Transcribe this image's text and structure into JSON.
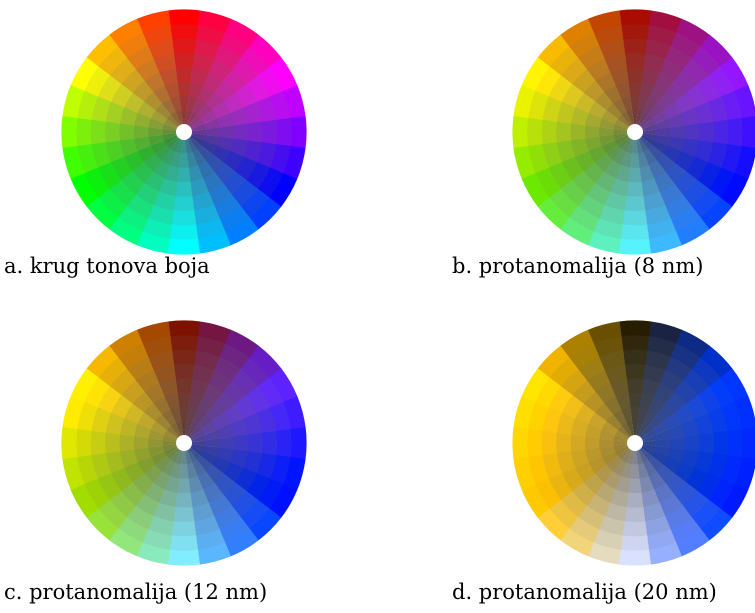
{
  "figure": {
    "panels": [
      {
        "id": "a",
        "caption": "a. krug tonova boja",
        "simulation": "none"
      },
      {
        "id": "b",
        "caption": "b. protanomalija (8 nm)",
        "simulation": "protanomaly",
        "shift_nm": 8
      },
      {
        "id": "c",
        "caption": "c. protanomalija (12 nm)",
        "simulation": "protanomaly",
        "shift_nm": 12
      },
      {
        "id": "d",
        "caption": "d. protanomalija (20 nm)",
        "simulation": "protanomaly",
        "shift_nm": 20
      }
    ],
    "wheel": {
      "hue_sectors": 24,
      "rings": 8
    }
  }
}
